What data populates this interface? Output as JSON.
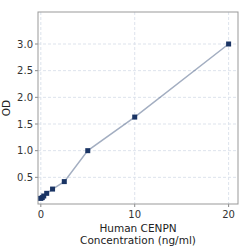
{
  "chart_data": {
    "type": "line",
    "x_label": "Human CENPN\nConcentration (ng/ml)",
    "y_label": "OD",
    "x": [
      0,
      0.156,
      0.312,
      0.625,
      1.25,
      2.5,
      5,
      10,
      20
    ],
    "values": [
      0.105,
      0.12,
      0.15,
      0.2,
      0.28,
      0.42,
      1.0,
      1.63,
      3.0
    ],
    "color": "#1a3464",
    "marker": "square",
    "xlim": [
      -0.3,
      21
    ],
    "ylim": [
      0,
      3.6
    ],
    "xticks": [
      0,
      10,
      20
    ],
    "yticks": [
      0.5,
      {
        "value": 1,
        "label": "1.0"
      },
      1.5,
      {
        "value": 2,
        "label": "2.0"
      },
      2.5,
      {
        "value": 3,
        "label": "3.0"
      }
    ],
    "grid": true
  }
}
